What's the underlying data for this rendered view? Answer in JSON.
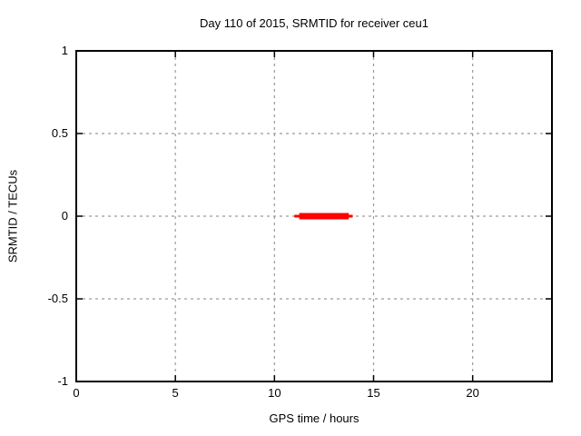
{
  "chart_data": {
    "type": "line",
    "title": "Day 110 of 2015, SRMTID for receiver ceu1",
    "xlabel": "GPS time / hours",
    "ylabel": "SRMTID / TECUs",
    "xlim": [
      0,
      24
    ],
    "ylim": [
      -1,
      1
    ],
    "xticks": [
      0,
      5,
      10,
      15,
      20
    ],
    "yticks": [
      -1,
      -0.5,
      0,
      0.5,
      1
    ],
    "grid": true,
    "grid_xticks": [
      5,
      10,
      15,
      20
    ],
    "grid_yticks": [
      -0.5,
      0,
      0.5
    ],
    "legend": "none",
    "series": [
      {
        "name": "SRMTID",
        "color": "#ff0000",
        "description": "flat segment at 0 TECUs between ~11 and ~14 hours",
        "segments": [
          {
            "y": 0,
            "x1": 11.0,
            "x2": 13.95,
            "stroke_px": 3
          },
          {
            "y": 0,
            "x1": 11.25,
            "x2": 13.75,
            "stroke_px": 7
          }
        ]
      }
    ],
    "colors": {
      "background": "#ffffff",
      "axis": "#000000",
      "grid": "#9a9a9a",
      "text": "#000000"
    }
  }
}
